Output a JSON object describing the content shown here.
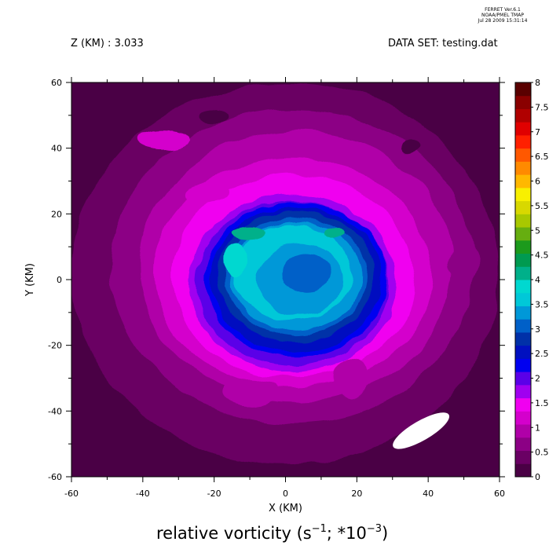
{
  "header": {
    "stamp_line1": "FERRET  Ver.6.1",
    "stamp_line2": "NOAA/PMEL TMAP",
    "stamp_line3": "Jul 28 2009 15:31:14",
    "z_label": "Z (KM) : 3.033",
    "dataset_label": "DATA SET: testing.dat"
  },
  "caption": {
    "main": "relative vorticity (s",
    "exp1": "−1",
    "mid": "; *10",
    "exp2": "−3",
    "end": ")"
  },
  "chart_data": {
    "type": "heatmap",
    "xlabel": "X (KM)",
    "ylabel": "Y (KM)",
    "xlim": [
      -60,
      60
    ],
    "ylim": [
      -60,
      60
    ],
    "x_ticks": [
      -60,
      -40,
      -20,
      0,
      20,
      40,
      60
    ],
    "y_ticks": [
      -60,
      -40,
      -20,
      0,
      20,
      40,
      60
    ],
    "colorbar": {
      "levels": [
        "0",
        "0.5",
        "1",
        "1.5",
        "2",
        "2.5",
        "3",
        "3.5",
        "4",
        "4.5",
        "5",
        "5.5",
        "6",
        "6.5",
        "7",
        "7.5",
        "8"
      ],
      "colors": [
        "#4a0045",
        "#6a0064",
        "#8c0085",
        "#b000a8",
        "#d400cc",
        "#f000f0",
        "#a000f0",
        "#5a00e8",
        "#0000f0",
        "#0010c0",
        "#0030a8",
        "#0060c8",
        "#0098d8",
        "#00c8d8",
        "#00d8d0",
        "#00b08a",
        "#009a50",
        "#1c9a1c",
        "#66ae10",
        "#a8c800",
        "#d8d800",
        "#f8f000",
        "#ffb800",
        "#ff8a00",
        "#ff5800",
        "#ff2000",
        "#e00000",
        "#b00000",
        "#8a0000",
        "#5a0000"
      ]
    },
    "features": {
      "vortex_core_center": [
        2,
        0
      ],
      "vortex_core_radius_km": 26,
      "core_max_value": 4.5,
      "background_value": 0.5,
      "missing_region_center": [
        38,
        -46
      ]
    }
  }
}
